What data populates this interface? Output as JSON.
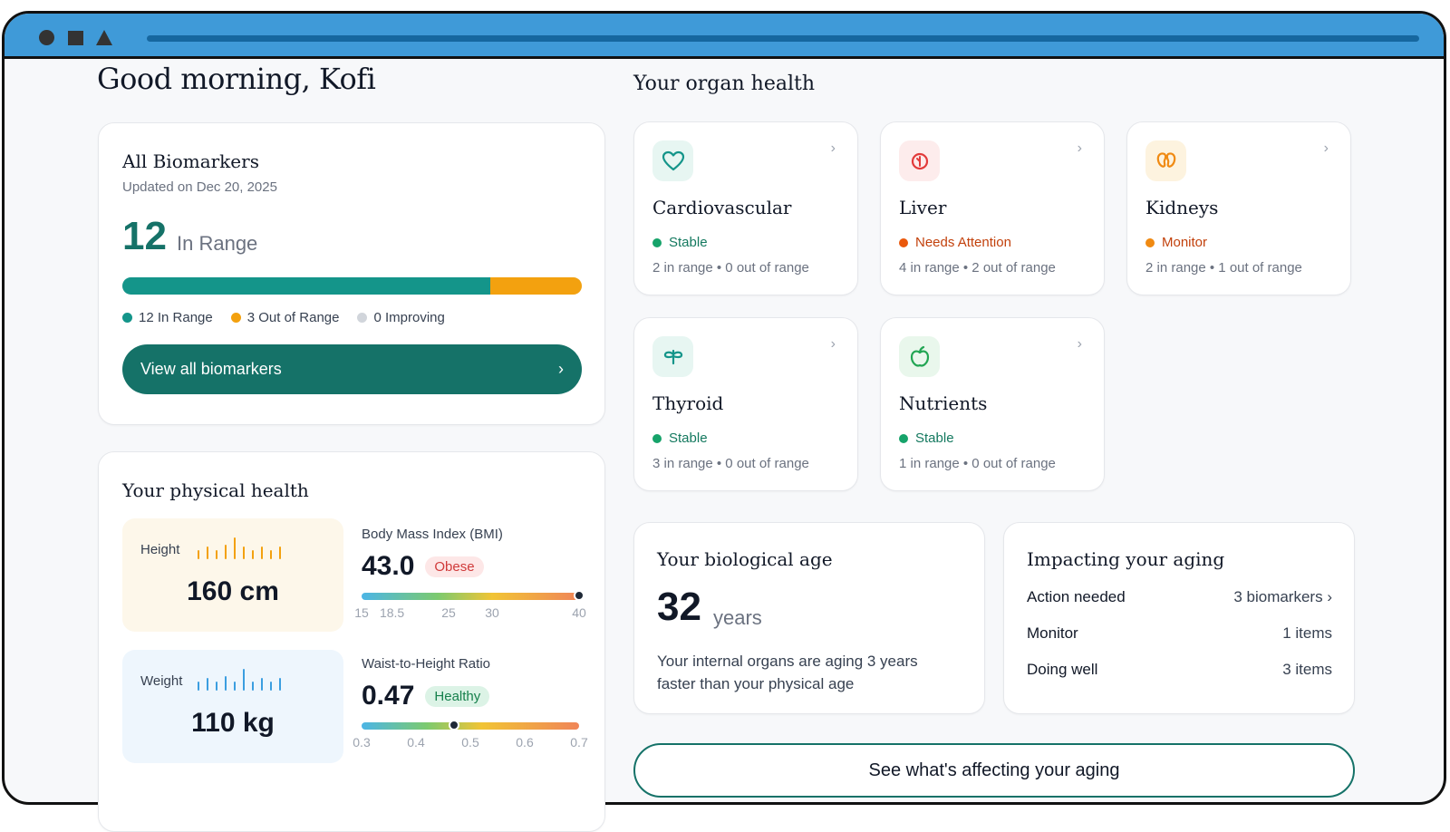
{
  "colors": {
    "teal": "#157268",
    "in_range": "#14958a",
    "out_range": "#f3a10f",
    "improving": "#d1d5db",
    "stable": "#16a36a",
    "attention": "#ea580c",
    "monitor": "#f08a12"
  },
  "greeting": "Good morning, Kofi",
  "biomarkers": {
    "title": "All Biomarkers",
    "updated": "Updated on Dec 20, 2025",
    "in_range_count": "12",
    "in_range_label": "In Range",
    "progress": {
      "in_range": 12,
      "out_of_range": 3,
      "improving": 0
    },
    "legend": [
      {
        "label": "12 In Range"
      },
      {
        "label": "3 Out of Range"
      },
      {
        "label": "0 Improving"
      }
    ],
    "cta": "View all biomarkers"
  },
  "physical": {
    "title": "Your physical health",
    "height": {
      "label": "Height",
      "value": "160 cm"
    },
    "weight": {
      "label": "Weight",
      "value": "110 kg"
    },
    "bmi": {
      "label": "Body Mass Index (BMI)",
      "value": "43.0",
      "badge": "Obese",
      "marker": 40,
      "range": [
        15,
        40
      ],
      "ticks": [
        "15",
        "18.5",
        "25",
        "30",
        "40"
      ]
    },
    "whr": {
      "label": "Waist-to-Height Ratio",
      "value": "0.47",
      "badge": "Healthy",
      "marker": 0.47,
      "range": [
        0.3,
        0.7
      ],
      "ticks": [
        "0.3",
        "0.4",
        "0.5",
        "0.6",
        "0.7"
      ]
    }
  },
  "organs": {
    "title": "Your organ health",
    "items": [
      {
        "name": "Cardiovascular",
        "status": "Stable",
        "summary": "2 in range • 0 out of range",
        "icon": "heart-icon"
      },
      {
        "name": "Liver",
        "status": "Needs Attention",
        "summary": "4 in range • 2 out of range",
        "icon": "liver-icon"
      },
      {
        "name": "Kidneys",
        "status": "Monitor",
        "summary": "2 in range • 1 out of range",
        "icon": "kidneys-icon"
      },
      {
        "name": "Thyroid",
        "status": "Stable",
        "summary": "3 in range • 0 out of range",
        "icon": "thyroid-icon"
      },
      {
        "name": "Nutrients",
        "status": "Stable",
        "summary": "1 in range • 0 out of range",
        "icon": "apple-icon"
      }
    ]
  },
  "bio_age": {
    "title": "Your biological age",
    "value": "32",
    "unit": "years",
    "description": "Your internal organs are aging 3 years faster than your physical age"
  },
  "impact": {
    "title": "Impacting your aging",
    "rows": [
      {
        "label": "Action needed",
        "value": "3 biomarkers"
      },
      {
        "label": "Monitor",
        "value": "1 items"
      },
      {
        "label": "Doing well",
        "value": "3 items"
      }
    ]
  },
  "aging_cta": "See what's affecting your aging"
}
